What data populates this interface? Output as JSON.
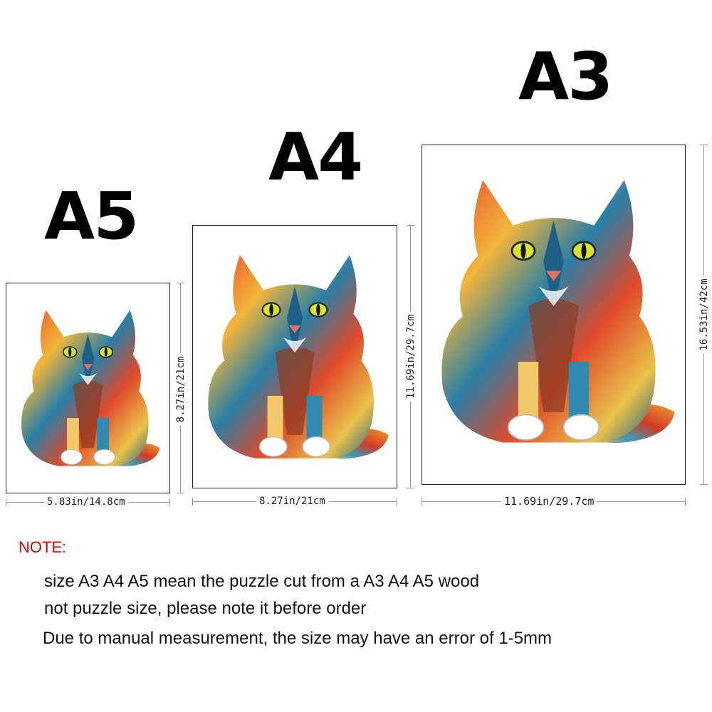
{
  "sizes": [
    {
      "label": "A5",
      "width_text": "5.83in/14.8cm",
      "height_text": "8.27in/21cm"
    },
    {
      "label": "A4",
      "width_text": "8.27in/21cm",
      "height_text": "11.69in/29.7cm"
    },
    {
      "label": "A3",
      "width_text": "11.69in/29.7cm",
      "height_text": "16.53in/42cm"
    }
  ],
  "note": {
    "title": "NOTE:",
    "lines": [
      "size A3 A4 A5 mean the puzzle cut from a A3 A4 A5 wood",
      "not puzzle size, please note it before order",
      "Due to manual measurement, the size may have an error of 1-5mm"
    ]
  },
  "colors": {
    "note_title": "#e00000",
    "text": "#111111",
    "frame": "#222222"
  },
  "image": {
    "subject": "colorful wooden cat puzzle",
    "icon": "cat-puzzle-image"
  }
}
